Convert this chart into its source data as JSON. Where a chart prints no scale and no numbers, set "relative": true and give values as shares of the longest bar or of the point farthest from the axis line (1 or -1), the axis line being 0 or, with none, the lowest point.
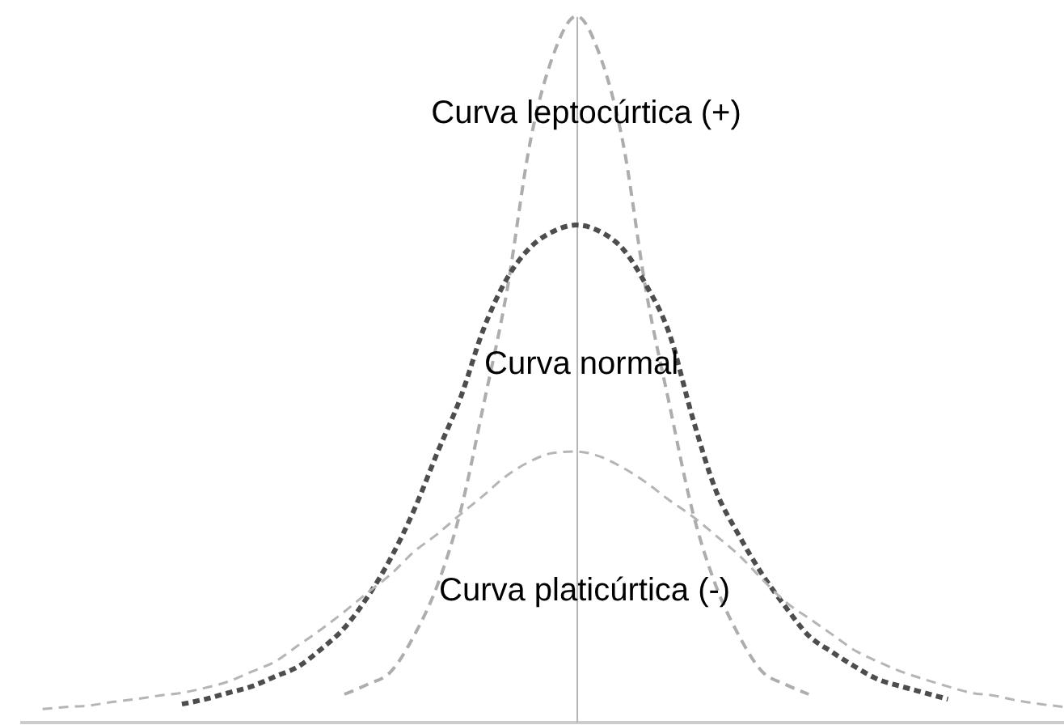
{
  "chart_data": {
    "type": "line",
    "relative": true,
    "line_style": "dashed",
    "categories": [
      null,
      null,
      null,
      null,
      null,
      null,
      null,
      null,
      null,
      null,
      null,
      null,
      null,
      null,
      null,
      null,
      null,
      null,
      null,
      null,
      null,
      null,
      null,
      null,
      null,
      null,
      null,
      null,
      null,
      null,
      null,
      null,
      null,
      null,
      null,
      null,
      null,
      null,
      null,
      null,
      null,
      null,
      null,
      null,
      null,
      null
    ],
    "series": [
      {
        "color": "#adadad",
        "values": [
          null,
          null,
          null,
          null,
          null,
          null,
          null,
          null,
          null,
          null,
          null,
          null,
          null,
          null,
          0.039,
          0.053,
          0.071,
          0.122,
          0.193,
          0.298,
          0.45,
          0.61,
          0.821,
          0.945,
          1.0,
          0.945,
          0.821,
          0.61,
          0.45,
          0.298,
          0.193,
          0.122,
          0.071,
          0.053,
          0.039,
          null,
          null,
          null,
          null,
          null,
          null,
          null,
          null,
          null,
          null,
          null
        ]
      },
      {
        "color": "#4d4d4d",
        "values": [
          null,
          null,
          null,
          null,
          null,
          null,
          null,
          0.025,
          0.032,
          0.041,
          0.05,
          0.064,
          0.078,
          0.103,
          0.133,
          0.177,
          0.232,
          0.3,
          0.381,
          0.459,
          0.557,
          0.628,
          0.672,
          0.695,
          0.704,
          0.695,
          0.67,
          0.619,
          0.55,
          0.431,
          0.328,
          0.264,
          0.209,
          0.163,
          0.122,
          0.099,
          0.078,
          0.06,
          0.05,
          0.041,
          0.032,
          null,
          null,
          null,
          null,
          null
        ]
      },
      {
        "color": "#b5b5b5",
        "values": [
          null,
          0.018,
          0.021,
          0.023,
          0.028,
          0.032,
          0.037,
          0.041,
          0.048,
          0.057,
          0.071,
          0.085,
          0.108,
          0.131,
          0.156,
          0.183,
          0.209,
          0.241,
          0.266,
          0.294,
          0.321,
          0.349,
          0.369,
          0.381,
          0.383,
          0.376,
          0.36,
          0.339,
          0.314,
          0.291,
          0.264,
          0.236,
          0.202,
          0.17,
          0.147,
          0.124,
          0.101,
          0.085,
          0.071,
          0.06,
          0.05,
          0.041,
          0.037,
          0.03,
          0.025,
          0.021
        ]
      }
    ],
    "annotations": [
      "Curva leptocúrtica (+)",
      "Curva normal",
      "Curva platicúrtica (-)"
    ]
  }
}
